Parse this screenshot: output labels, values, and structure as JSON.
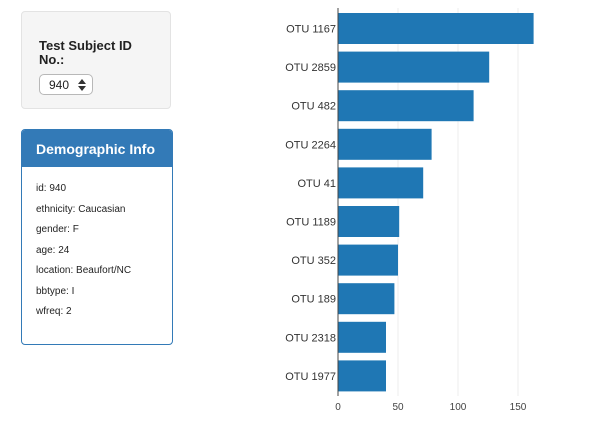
{
  "selector": {
    "label": "Test Subject ID No.:",
    "selected": "940"
  },
  "demographics": {
    "title": "Demographic Info",
    "rows": [
      "id: 940",
      "ethnicity: Caucasian",
      "gender: F",
      "age: 24",
      "location: Beaufort/NC",
      "bbtype: I",
      "wfreq: 2"
    ]
  },
  "chart_data": {
    "type": "bar",
    "orientation": "horizontal",
    "categories": [
      "OTU 1167",
      "OTU 2859",
      "OTU 482",
      "OTU 2264",
      "OTU 41",
      "OTU 1189",
      "OTU 352",
      "OTU 189",
      "OTU 2318",
      "OTU 1977"
    ],
    "values": [
      163,
      126,
      113,
      78,
      71,
      51,
      50,
      47,
      40,
      40
    ],
    "xlim": [
      0,
      170
    ],
    "xticks": [
      0,
      50,
      100,
      150
    ],
    "grid": true,
    "bar_color": "#1f77b4"
  }
}
